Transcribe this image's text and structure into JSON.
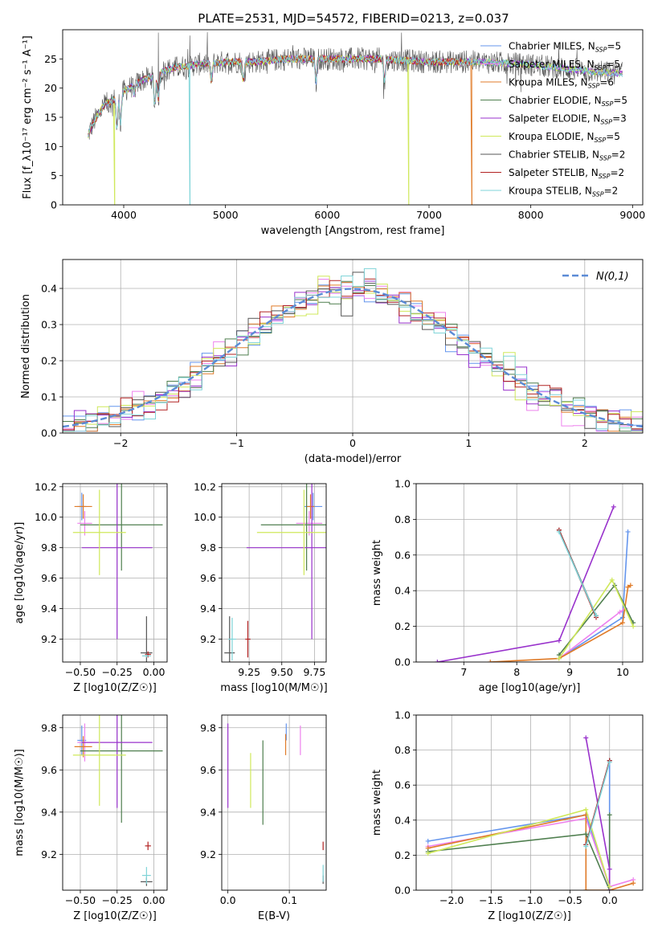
{
  "figure": {
    "title": "PLATE=2531, MJD=54572, FIBERID=0213, z=0.037"
  },
  "models": [
    {
      "name": "Chabrier MILES, N$_{SSP}$=5",
      "label": "Chabrier MILES, N",
      "nssp": "5",
      "color": "#6495ed"
    },
    {
      "name": "Salpeter MILES, N$_{SSP}$=5",
      "label": "Salpeter MILES, N",
      "nssp": "5",
      "color": "#ee82ee"
    },
    {
      "name": "Kroupa MILES, N$_{SSP}$=6",
      "label": "Kroupa MILES, N",
      "nssp": "6",
      "color": "#e07b28"
    },
    {
      "name": "Chabrier ELODIE, N$_{SSP}$=5",
      "label": "Chabrier ELODIE, N",
      "nssp": "5",
      "color": "#4f7f4f"
    },
    {
      "name": "Salpeter ELODIE, N$_{SSP}$=3",
      "label": "Salpeter ELODIE, N",
      "nssp": "3",
      "color": "#9932cc"
    },
    {
      "name": "Kroupa ELODIE, N$_{SSP}$=5",
      "label": "Kroupa ELODIE, N",
      "nssp": "5",
      "color": "#cfe85a"
    },
    {
      "name": "Chabrier STELIB, N$_{SSP}$=2",
      "label": "Chabrier STELIB, N",
      "nssp": "2",
      "color": "#555555"
    },
    {
      "name": "Salpeter STELIB, N$_{SSP}$=2",
      "label": "Salpeter STELIB, N",
      "nssp": "2",
      "color": "#b22222"
    },
    {
      "name": "Kroupa STELIB, N$_{SSP}$=2",
      "label": "Kroupa STELIB, N",
      "nssp": "2",
      "color": "#7fd4d8"
    }
  ],
  "chart_data": [
    {
      "id": "spectrum",
      "type": "line",
      "xlabel": "wavelength [Angstrom, rest frame]",
      "ylabel": "Flux [f_λ10⁻¹⁷ erg cm⁻² s⁻¹ A⁻¹]",
      "xlim": [
        3400,
        9100
      ],
      "ylim": [
        0,
        30
      ],
      "xticks": [
        4000,
        5000,
        6000,
        7000,
        8000,
        9000
      ],
      "yticks": [
        0,
        5,
        10,
        15,
        20,
        25
      ],
      "continuum": {
        "x": [
          3650,
          3700,
          3800,
          3900,
          4000,
          4100,
          4200,
          4300,
          4400,
          4500,
          4700,
          5000,
          5300,
          5600,
          6000,
          6500,
          7000,
          7500,
          8000,
          8500,
          8900
        ],
        "y": [
          12,
          14,
          17,
          18,
          19.5,
          20.5,
          21.5,
          22,
          23,
          23.5,
          24,
          24.5,
          24.5,
          25,
          25,
          25,
          24.5,
          24.5,
          24,
          23,
          22.5
        ]
      },
      "features": {
        "dips": [
          {
            "x": 3934,
            "y": 13
          },
          {
            "x": 3969,
            "y": 14
          },
          {
            "x": 4102,
            "y": 19
          },
          {
            "x": 4305,
            "y": 17
          },
          {
            "x": 4340,
            "y": 18
          },
          {
            "x": 4861,
            "y": 21
          },
          {
            "x": 5175,
            "y": 21
          },
          {
            "x": 5890,
            "y": 21
          },
          {
            "x": 6563,
            "y": 21
          }
        ],
        "spikes": [
          {
            "x": 4340,
            "y": 29.5
          },
          {
            "x": 4650,
            "y": 29
          },
          {
            "x": 6730,
            "y": 29.5
          }
        ],
        "drops": [
          {
            "x": 3910,
            "series": 5
          },
          {
            "x": 4650,
            "series": 8
          },
          {
            "x": 6800,
            "series": 5
          },
          {
            "x": 7420,
            "series": 2
          }
        ]
      }
    },
    {
      "id": "residuals",
      "type": "histogram",
      "xlabel": "(data-model)/error",
      "ylabel": "Normed distribution",
      "xlim": [
        -2.5,
        2.5
      ],
      "ylim": [
        0,
        0.48
      ],
      "xticks": [
        -2,
        -1,
        0,
        1,
        2
      ],
      "yticks": [
        0.0,
        0.1,
        0.2,
        0.3,
        0.4
      ],
      "bin_width": 0.1,
      "reference": {
        "name": "N(0,1)",
        "mean": 0,
        "sigma": 1
      }
    },
    {
      "id": "age_vs_Z",
      "type": "errorbar",
      "xlabel": "Z [log10(Z/Z☉)]",
      "ylabel": "age  [log10(age/yr)]",
      "xlim": [
        -0.62,
        0.09
      ],
      "ylim": [
        9.05,
        10.22
      ],
      "xticks": [
        -0.5,
        -0.25,
        0.0
      ],
      "yticks": [
        9.2,
        9.4,
        9.6,
        9.8,
        10.0,
        10.2
      ],
      "points": [
        {
          "series": 0,
          "x": -0.49,
          "xerr": 0.03,
          "y": 10.07,
          "yerr": 0.09
        },
        {
          "series": 1,
          "x": -0.47,
          "xerr": 0.05,
          "y": 9.96,
          "yerr": 0.08
        },
        {
          "series": 2,
          "x": -0.48,
          "xerr": 0.06,
          "y": 10.07,
          "yerr": 0.08
        },
        {
          "series": 3,
          "x": -0.22,
          "xerr": 0.28,
          "y": 9.95,
          "yerr": 0.3
        },
        {
          "series": 4,
          "x": -0.25,
          "xerr": 0.24,
          "y": 9.8,
          "yerr": 0.6
        },
        {
          "series": 5,
          "x": -0.37,
          "xerr": 0.18,
          "y": 9.9,
          "yerr": 0.28
        },
        {
          "series": 6,
          "x": -0.05,
          "xerr": 0.04,
          "y": 9.11,
          "yerr": 0.24
        },
        {
          "series": 7,
          "x": -0.04,
          "xerr": 0.02,
          "y": 9.1,
          "yerr": 0.02
        },
        {
          "series": 8,
          "x": -0.05,
          "xerr": 0.03,
          "y": 9.09,
          "yerr": 0.01
        }
      ]
    },
    {
      "id": "age_vs_mass",
      "type": "errorbar",
      "xlabel": "mass [log10(M/M☉)]",
      "ylabel": "",
      "xlim": [
        9.04,
        9.84
      ],
      "ylim": [
        9.05,
        10.22
      ],
      "xticks": [
        9.25,
        9.5,
        9.75
      ],
      "yticks": [
        9.2,
        9.4,
        9.6,
        9.8,
        10.0,
        10.2
      ],
      "points": [
        {
          "series": 0,
          "x": 9.74,
          "xerr": 0.07,
          "y": 10.07,
          "yerr": 0.09
        },
        {
          "series": 1,
          "x": 9.71,
          "xerr": 0.1,
          "y": 9.96,
          "yerr": 0.08
        },
        {
          "series": 2,
          "x": 9.72,
          "xerr": 0.03,
          "y": 10.07,
          "yerr": 0.08
        },
        {
          "series": 3,
          "x": 9.69,
          "xerr": 0.35,
          "y": 9.95,
          "yerr": 0.3
        },
        {
          "series": 4,
          "x": 9.73,
          "xerr": 0.5,
          "y": 9.8,
          "yerr": 0.6
        },
        {
          "series": 5,
          "x": 9.67,
          "xerr": 0.36,
          "y": 9.9,
          "yerr": 0.28
        },
        {
          "series": 6,
          "x": 9.1,
          "xerr": 0.04,
          "y": 9.11,
          "yerr": 0.24
        },
        {
          "series": 7,
          "x": 9.24,
          "xerr": 0.02,
          "y": 9.2,
          "yerr": 0.12
        },
        {
          "series": 8,
          "x": 9.12,
          "xerr": 0.03,
          "y": 9.2,
          "yerr": 0.14
        }
      ]
    },
    {
      "id": "weight_vs_age",
      "type": "line",
      "xlabel": "age  [log10(age/yr)]",
      "ylabel": "mass weight",
      "xlim": [
        6.1,
        10.38
      ],
      "ylim": [
        0,
        1.0
      ],
      "xticks": [
        7,
        8,
        9,
        10
      ],
      "yticks": [
        0.0,
        0.2,
        0.4,
        0.6,
        0.8,
        1.0
      ],
      "series": [
        {
          "series": 0,
          "x": [
            8.8,
            10.0,
            10.1
          ],
          "y": [
            0.02,
            0.25,
            0.73
          ]
        },
        {
          "series": 1,
          "x": [
            8.8,
            9.95,
            10.05
          ],
          "y": [
            0.02,
            0.28,
            0.3
          ]
        },
        {
          "series": 2,
          "x": [
            7.5,
            8.8,
            10.0,
            10.1,
            10.15
          ],
          "y": [
            0.0,
            0.02,
            0.22,
            0.42,
            0.43
          ]
        },
        {
          "series": 3,
          "x": [
            8.8,
            9.85,
            10.2
          ],
          "y": [
            0.04,
            0.43,
            0.22
          ]
        },
        {
          "series": 4,
          "x": [
            6.5,
            8.8,
            9.83
          ],
          "y": [
            0.0,
            0.12,
            0.87
          ]
        },
        {
          "series": 5,
          "x": [
            8.8,
            9.8,
            10.2
          ],
          "y": [
            0.02,
            0.46,
            0.2
          ]
        },
        {
          "series": 6,
          "x": [
            8.8,
            9.5
          ],
          "y": [
            0.74,
            0.26
          ]
        },
        {
          "series": 7,
          "x": [
            8.8,
            9.5
          ],
          "y": [
            0.74,
            0.25
          ]
        },
        {
          "series": 8,
          "x": [
            8.8,
            9.5
          ],
          "y": [
            0.73,
            0.26
          ]
        }
      ]
    },
    {
      "id": "mass_vs_Z",
      "type": "errorbar",
      "xlabel": "Z [log10(Z/Z☉)]",
      "ylabel": "mass [log10(M/M☉)]",
      "xlim": [
        -0.62,
        0.09
      ],
      "ylim": [
        9.03,
        9.86
      ],
      "xticks": [
        -0.5,
        -0.25,
        0.0
      ],
      "yticks": [
        9.2,
        9.4,
        9.6,
        9.8
      ],
      "points": [
        {
          "series": 0,
          "x": -0.49,
          "xerr": 0.03,
          "y": 9.74,
          "yerr": 0.07
        },
        {
          "series": 1,
          "x": -0.47,
          "xerr": 0.05,
          "y": 9.73,
          "yerr": 0.09
        },
        {
          "series": 2,
          "x": -0.48,
          "xerr": 0.06,
          "y": 9.71,
          "yerr": 0.05
        },
        {
          "series": 3,
          "x": -0.22,
          "xerr": 0.28,
          "y": 9.69,
          "yerr": 0.34
        },
        {
          "series": 4,
          "x": -0.25,
          "xerr": 0.24,
          "y": 9.73,
          "yerr": 0.31
        },
        {
          "series": 5,
          "x": -0.37,
          "xerr": 0.18,
          "y": 9.67,
          "yerr": 0.24
        },
        {
          "series": 6,
          "x": -0.05,
          "xerr": 0.04,
          "y": 9.07,
          "yerr": 0.02
        },
        {
          "series": 7,
          "x": -0.04,
          "xerr": 0.02,
          "y": 9.24,
          "yerr": 0.02
        },
        {
          "series": 8,
          "x": -0.05,
          "xerr": 0.03,
          "y": 9.1,
          "yerr": 0.04
        }
      ]
    },
    {
      "id": "mass_vs_ebv",
      "type": "errorbar",
      "xlabel": "E(B-V)",
      "ylabel": "",
      "xlim": [
        -0.01,
        0.16
      ],
      "ylim": [
        9.03,
        9.86
      ],
      "xticks": [
        0.0,
        0.1
      ],
      "yticks": [
        9.2,
        9.4,
        9.6,
        9.8
      ],
      "points": [
        {
          "series": 0,
          "x": 0.095,
          "y": 9.78,
          "yerr": 0.04
        },
        {
          "series": 1,
          "x": 0.118,
          "y": 9.74,
          "yerr": 0.07
        },
        {
          "series": 2,
          "x": 0.094,
          "y": 9.72,
          "yerr": 0.05
        },
        {
          "series": 3,
          "x": 0.057,
          "y": 9.54,
          "yerr": 0.2
        },
        {
          "series": 4,
          "x": 0.0,
          "y": 9.62,
          "yerr": 0.2
        },
        {
          "series": 5,
          "x": 0.037,
          "y": 9.55,
          "yerr": 0.13
        },
        {
          "series": 6,
          "x": 0.155,
          "y": 9.08,
          "yerr": 0.02
        },
        {
          "series": 7,
          "x": 0.155,
          "y": 9.24,
          "yerr": 0.02
        },
        {
          "series": 8,
          "x": 0.155,
          "y": 9.11,
          "yerr": 0.04
        }
      ]
    },
    {
      "id": "weight_vs_Z",
      "type": "line",
      "xlabel": "Z [log10(Z/Z☉)]",
      "ylabel": "mass weight",
      "xlim": [
        -2.45,
        0.42
      ],
      "ylim": [
        0,
        1.0
      ],
      "xticks": [
        -2.0,
        -1.5,
        -1.0,
        -0.5,
        0.0
      ],
      "yticks": [
        0.0,
        0.2,
        0.4,
        0.6,
        0.8,
        1.0
      ],
      "series": [
        {
          "series": 0,
          "x": [
            -2.3,
            -0.3,
            0.0,
            0.0
          ],
          "y": [
            0.28,
            0.43,
            0.02,
            0.74
          ]
        },
        {
          "series": 1,
          "x": [
            -2.3,
            -0.3,
            0.0,
            0.3
          ],
          "y": [
            0.25,
            0.41,
            0.02,
            0.06
          ]
        },
        {
          "series": 2,
          "x": [
            -2.3,
            -0.3,
            -0.3,
            0.0,
            0.3
          ],
          "y": [
            0.24,
            0.43,
            0.0,
            0.0,
            0.04
          ]
        },
        {
          "series": 3,
          "x": [
            -2.3,
            -0.3,
            0.0,
            0.0
          ],
          "y": [
            0.22,
            0.32,
            0.0,
            0.43
          ]
        },
        {
          "series": 4,
          "x": [
            -0.3,
            0.0,
            0.0
          ],
          "y": [
            0.87,
            0.12,
            0.0
          ]
        },
        {
          "series": 5,
          "x": [
            -2.3,
            -0.3,
            0.0
          ],
          "y": [
            0.21,
            0.46,
            0.02
          ]
        },
        {
          "series": 6,
          "x": [
            -0.3,
            0.0
          ],
          "y": [
            0.26,
            0.74
          ]
        },
        {
          "series": 7,
          "x": [
            -0.3,
            0.0
          ],
          "y": [
            0.26,
            0.74
          ]
        },
        {
          "series": 8,
          "x": [
            -0.3,
            0.0
          ],
          "y": [
            0.25,
            0.73
          ]
        }
      ]
    }
  ]
}
